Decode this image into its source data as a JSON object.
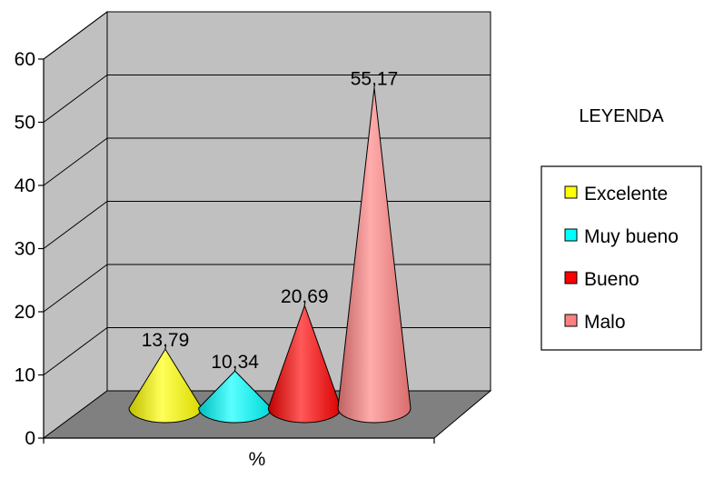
{
  "chart_data": {
    "type": "bar",
    "style": "3d-cone",
    "title": "",
    "xlabel": "%",
    "ylabel": "",
    "ylim": [
      0,
      60
    ],
    "yticks": [
      "0",
      "10",
      "20",
      "30",
      "40",
      "50",
      "60"
    ],
    "grid": true,
    "legend_placement": "right",
    "legend_title": "LEYENDA",
    "series": [
      {
        "name": "Excelente",
        "value": 13.79,
        "label": "13,79",
        "color": "#ffff00"
      },
      {
        "name": "Muy bueno",
        "value": 10.34,
        "label": "10,34",
        "color": "#00ffff"
      },
      {
        "name": "Bueno",
        "value": 20.69,
        "label": "20,69",
        "color": "#ff0000"
      },
      {
        "name": "Malo",
        "value": 55.17,
        "label": "55,17",
        "color": "#ff8080"
      }
    ],
    "wall_color": "#c0c0c0",
    "floor_color": "#808080"
  }
}
